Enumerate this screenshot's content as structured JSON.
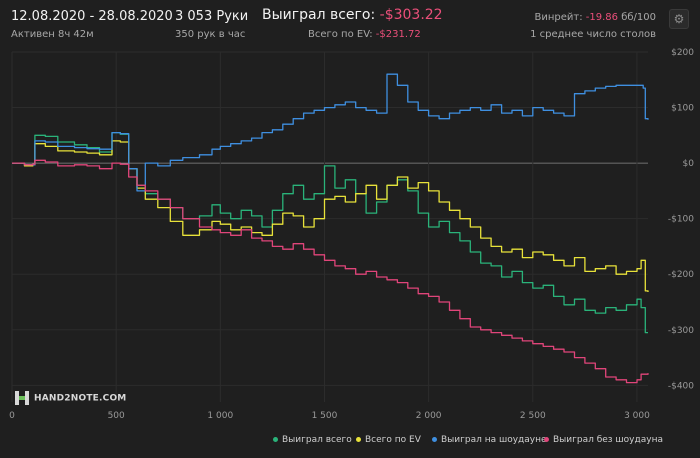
{
  "header": {
    "date_range": "12.08.2020 - 28.08.2020",
    "active": "Активен 8ч 42м",
    "hands": "3 053 Руки",
    "hands_per_hour": "350 рук в час",
    "won_total_label": "Выиграл всего:",
    "won_total_value": "-$303.22",
    "ev_label": "Всего по EV:",
    "ev_value": "-$231.72",
    "winrate_label": "Винрейт:",
    "winrate_value": "-19.86",
    "winrate_unit": "бб/100",
    "tables": "1 среднее число столов"
  },
  "logo_text": "HAND2NOTE.COM",
  "colors": {
    "won": "#2ab37a",
    "ev": "#e8e23a",
    "showdown": "#3f8fe0",
    "nonshowdown": "#e0457a",
    "negative": "#ea4f7a",
    "zero_line": "#8a8a8a",
    "grid": "#2c2c2c"
  },
  "legend": [
    {
      "label": "Выиграл всего",
      "color": "#2ab37a"
    },
    {
      "label": "Всего по EV",
      "color": "#e8e23a"
    },
    {
      "label": "Выиграл на шоудауне",
      "color": "#3f8fe0"
    },
    {
      "label": "Выиграл без шоудауна",
      "color": "#e0457a"
    }
  ],
  "chart_data": {
    "type": "line",
    "xlim": [
      0,
      3053
    ],
    "ylim": [
      -430,
      200
    ],
    "x_ticks": [
      0,
      500,
      1000,
      1500,
      2000,
      2500,
      3000
    ],
    "x_tick_labels": [
      "0",
      "500",
      "1 000",
      "1 500",
      "2 000",
      "2 500",
      "3 000"
    ],
    "y_ticks": [
      200,
      100,
      0,
      -100,
      -200,
      -300,
      -400
    ],
    "y_tick_labels": [
      "$200",
      "$100",
      "$0",
      "-$100",
      "-$200",
      "-$300",
      "-$400"
    ],
    "legend_position": "bottom-right",
    "series": [
      {
        "name": "Выиграл всего",
        "color": "#2ab37a",
        "points": [
          [
            0,
            0
          ],
          [
            60,
            -5
          ],
          [
            100,
            -3
          ],
          [
            110,
            50
          ],
          [
            160,
            48
          ],
          [
            220,
            38
          ],
          [
            300,
            33
          ],
          [
            360,
            28
          ],
          [
            420,
            20
          ],
          [
            480,
            55
          ],
          [
            520,
            52
          ],
          [
            560,
            -10
          ],
          [
            600,
            -40
          ],
          [
            640,
            -55
          ],
          [
            700,
            -65
          ],
          [
            760,
            -80
          ],
          [
            820,
            -100
          ],
          [
            900,
            -95
          ],
          [
            960,
            -75
          ],
          [
            1000,
            -90
          ],
          [
            1050,
            -100
          ],
          [
            1100,
            -85
          ],
          [
            1150,
            -95
          ],
          [
            1200,
            -115
          ],
          [
            1250,
            -85
          ],
          [
            1300,
            -55
          ],
          [
            1350,
            -40
          ],
          [
            1400,
            -65
          ],
          [
            1450,
            -55
          ],
          [
            1500,
            -5
          ],
          [
            1550,
            -45
          ],
          [
            1600,
            -30
          ],
          [
            1650,
            -55
          ],
          [
            1700,
            -90
          ],
          [
            1750,
            -70
          ],
          [
            1800,
            -40
          ],
          [
            1850,
            -30
          ],
          [
            1900,
            -50
          ],
          [
            1950,
            -90
          ],
          [
            2000,
            -115
          ],
          [
            2050,
            -105
          ],
          [
            2100,
            -125
          ],
          [
            2150,
            -140
          ],
          [
            2200,
            -160
          ],
          [
            2250,
            -180
          ],
          [
            2300,
            -185
          ],
          [
            2350,
            -205
          ],
          [
            2400,
            -195
          ],
          [
            2450,
            -215
          ],
          [
            2500,
            -225
          ],
          [
            2550,
            -220
          ],
          [
            2600,
            -240
          ],
          [
            2650,
            -255
          ],
          [
            2700,
            -245
          ],
          [
            2750,
            -265
          ],
          [
            2800,
            -270
          ],
          [
            2850,
            -260
          ],
          [
            2900,
            -265
          ],
          [
            2950,
            -255
          ],
          [
            3000,
            -245
          ],
          [
            3020,
            -260
          ],
          [
            3040,
            -305
          ],
          [
            3053,
            -305
          ]
        ]
      },
      {
        "name": "Всего по EV",
        "color": "#e8e23a",
        "points": [
          [
            0,
            0
          ],
          [
            60,
            -5
          ],
          [
            100,
            -3
          ],
          [
            110,
            35
          ],
          [
            160,
            30
          ],
          [
            220,
            22
          ],
          [
            300,
            20
          ],
          [
            360,
            18
          ],
          [
            420,
            15
          ],
          [
            480,
            40
          ],
          [
            520,
            38
          ],
          [
            560,
            -10
          ],
          [
            600,
            -45
          ],
          [
            640,
            -65
          ],
          [
            700,
            -80
          ],
          [
            760,
            -105
          ],
          [
            820,
            -130
          ],
          [
            900,
            -120
          ],
          [
            960,
            -105
          ],
          [
            1000,
            -110
          ],
          [
            1050,
            -120
          ],
          [
            1100,
            -115
          ],
          [
            1150,
            -125
          ],
          [
            1200,
            -130
          ],
          [
            1250,
            -110
          ],
          [
            1300,
            -90
          ],
          [
            1350,
            -95
          ],
          [
            1400,
            -115
          ],
          [
            1450,
            -100
          ],
          [
            1500,
            -65
          ],
          [
            1550,
            -60
          ],
          [
            1600,
            -70
          ],
          [
            1650,
            -55
          ],
          [
            1700,
            -40
          ],
          [
            1750,
            -65
          ],
          [
            1800,
            -40
          ],
          [
            1850,
            -25
          ],
          [
            1900,
            -45
          ],
          [
            1950,
            -35
          ],
          [
            2000,
            -50
          ],
          [
            2050,
            -70
          ],
          [
            2100,
            -85
          ],
          [
            2150,
            -100
          ],
          [
            2200,
            -115
          ],
          [
            2250,
            -135
          ],
          [
            2300,
            -150
          ],
          [
            2350,
            -160
          ],
          [
            2400,
            -155
          ],
          [
            2450,
            -170
          ],
          [
            2500,
            -160
          ],
          [
            2550,
            -165
          ],
          [
            2600,
            -175
          ],
          [
            2650,
            -185
          ],
          [
            2700,
            -170
          ],
          [
            2750,
            -195
          ],
          [
            2800,
            -190
          ],
          [
            2850,
            -185
          ],
          [
            2900,
            -200
          ],
          [
            2950,
            -195
          ],
          [
            3000,
            -190
          ],
          [
            3020,
            -175
          ],
          [
            3040,
            -230
          ],
          [
            3053,
            -232
          ]
        ]
      },
      {
        "name": "Выиграл на шоудауне",
        "color": "#3f8fe0",
        "points": [
          [
            0,
            0
          ],
          [
            60,
            -3
          ],
          [
            100,
            -3
          ],
          [
            110,
            40
          ],
          [
            160,
            38
          ],
          [
            220,
            30
          ],
          [
            300,
            28
          ],
          [
            360,
            26
          ],
          [
            420,
            25
          ],
          [
            480,
            55
          ],
          [
            520,
            53
          ],
          [
            560,
            -10
          ],
          [
            600,
            -50
          ],
          [
            640,
            0
          ],
          [
            700,
            -5
          ],
          [
            760,
            5
          ],
          [
            820,
            10
          ],
          [
            900,
            15
          ],
          [
            960,
            25
          ],
          [
            1000,
            30
          ],
          [
            1050,
            35
          ],
          [
            1100,
            40
          ],
          [
            1150,
            45
          ],
          [
            1200,
            55
          ],
          [
            1250,
            60
          ],
          [
            1300,
            70
          ],
          [
            1350,
            80
          ],
          [
            1400,
            90
          ],
          [
            1450,
            95
          ],
          [
            1500,
            100
          ],
          [
            1550,
            105
          ],
          [
            1600,
            110
          ],
          [
            1650,
            100
          ],
          [
            1700,
            95
          ],
          [
            1750,
            90
          ],
          [
            1800,
            160
          ],
          [
            1850,
            140
          ],
          [
            1900,
            110
          ],
          [
            1950,
            95
          ],
          [
            2000,
            85
          ],
          [
            2050,
            80
          ],
          [
            2100,
            90
          ],
          [
            2150,
            95
          ],
          [
            2200,
            100
          ],
          [
            2250,
            95
          ],
          [
            2300,
            105
          ],
          [
            2350,
            90
          ],
          [
            2400,
            95
          ],
          [
            2450,
            85
          ],
          [
            2500,
            100
          ],
          [
            2550,
            95
          ],
          [
            2600,
            90
          ],
          [
            2650,
            85
          ],
          [
            2700,
            125
          ],
          [
            2750,
            130
          ],
          [
            2800,
            135
          ],
          [
            2850,
            138
          ],
          [
            2900,
            140
          ],
          [
            2950,
            140
          ],
          [
            3000,
            140
          ],
          [
            3030,
            135
          ],
          [
            3040,
            80
          ],
          [
            3053,
            78
          ]
        ]
      },
      {
        "name": "Выиграл без шоудауна",
        "color": "#e0457a",
        "points": [
          [
            0,
            0
          ],
          [
            60,
            -3
          ],
          [
            100,
            -2
          ],
          [
            110,
            5
          ],
          [
            160,
            2
          ],
          [
            220,
            -5
          ],
          [
            300,
            -3
          ],
          [
            360,
            -5
          ],
          [
            420,
            -10
          ],
          [
            480,
            0
          ],
          [
            520,
            -2
          ],
          [
            560,
            -25
          ],
          [
            600,
            -40
          ],
          [
            640,
            -50
          ],
          [
            700,
            -65
          ],
          [
            760,
            -80
          ],
          [
            820,
            -100
          ],
          [
            900,
            -115
          ],
          [
            960,
            -120
          ],
          [
            1000,
            -125
          ],
          [
            1050,
            -130
          ],
          [
            1100,
            -120
          ],
          [
            1150,
            -135
          ],
          [
            1200,
            -140
          ],
          [
            1250,
            -150
          ],
          [
            1300,
            -155
          ],
          [
            1350,
            -145
          ],
          [
            1400,
            -155
          ],
          [
            1450,
            -165
          ],
          [
            1500,
            -175
          ],
          [
            1550,
            -185
          ],
          [
            1600,
            -190
          ],
          [
            1650,
            -200
          ],
          [
            1700,
            -195
          ],
          [
            1750,
            -205
          ],
          [
            1800,
            -210
          ],
          [
            1850,
            -215
          ],
          [
            1900,
            -225
          ],
          [
            1950,
            -235
          ],
          [
            2000,
            -240
          ],
          [
            2050,
            -250
          ],
          [
            2100,
            -265
          ],
          [
            2150,
            -280
          ],
          [
            2200,
            -295
          ],
          [
            2250,
            -300
          ],
          [
            2300,
            -305
          ],
          [
            2350,
            -310
          ],
          [
            2400,
            -315
          ],
          [
            2450,
            -320
          ],
          [
            2500,
            -325
          ],
          [
            2550,
            -330
          ],
          [
            2600,
            -335
          ],
          [
            2650,
            -340
          ],
          [
            2700,
            -350
          ],
          [
            2750,
            -360
          ],
          [
            2800,
            -370
          ],
          [
            2850,
            -385
          ],
          [
            2900,
            -390
          ],
          [
            2950,
            -395
          ],
          [
            3000,
            -390
          ],
          [
            3020,
            -380
          ],
          [
            3040,
            -380
          ],
          [
            3053,
            -378
          ]
        ]
      }
    ]
  }
}
